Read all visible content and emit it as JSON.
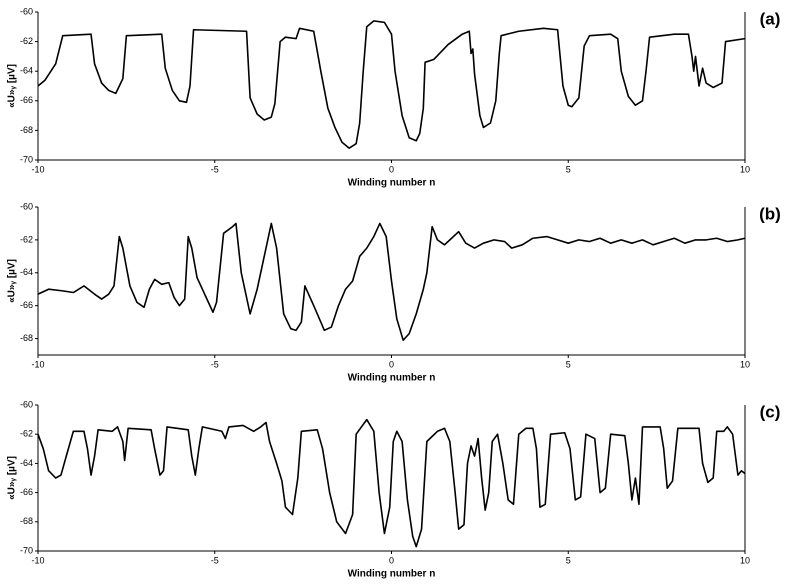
{
  "chart_data": [
    {
      "type": "line",
      "label": "(a)",
      "xlabel": "Winding number n",
      "ylabel": "«U»ᵧ [µV]",
      "color": "#000000",
      "xlim": [
        -10,
        10
      ],
      "xticks": [
        -10,
        -5,
        0,
        5,
        10
      ],
      "ylim": [
        -70,
        -60
      ],
      "yticks": [
        -70,
        -68,
        -66,
        -64,
        -62,
        -60
      ],
      "x": [
        -10,
        -9.8,
        -9.5,
        -9.3,
        -8.5,
        -8.4,
        -8.2,
        -8.0,
        -7.8,
        -7.6,
        -7.5,
        -6.5,
        -6.4,
        -6.2,
        -6.0,
        -5.8,
        -5.7,
        -5.6,
        -4.1,
        -4.0,
        -3.8,
        -3.6,
        -3.4,
        -3.3,
        -3.15,
        -3.0,
        -2.7,
        -2.6,
        -2.2,
        -2.0,
        -1.8,
        -1.6,
        -1.4,
        -1.2,
        -1.0,
        -0.9,
        -0.8,
        -0.7,
        -0.5,
        -0.2,
        0,
        0.1,
        0.3,
        0.5,
        0.7,
        0.8,
        0.9,
        0.95,
        1.2,
        1.6,
        2.0,
        2.2,
        2.25,
        2.3,
        2.35,
        2.5,
        2.6,
        2.8,
        2.95,
        3.05,
        3.1,
        3.6,
        4.3,
        4.7,
        4.75,
        4.85,
        5.0,
        5.1,
        5.3,
        5.45,
        5.6,
        6.2,
        6.4,
        6.5,
        6.7,
        6.9,
        7.1,
        7.2,
        7.3,
        8.0,
        8.4,
        8.5,
        8.55,
        8.6,
        8.7,
        8.8,
        8.9,
        9.1,
        9.35,
        9.45,
        10
      ],
      "values": [
        -65,
        -64.6,
        -63.5,
        -61.6,
        -61.5,
        -63.5,
        -64.8,
        -65.3,
        -65.5,
        -64.5,
        -61.6,
        -61.5,
        -63.8,
        -65.3,
        -66,
        -66.1,
        -65,
        -61.2,
        -61.3,
        -65.8,
        -66.9,
        -67.3,
        -67.1,
        -66.2,
        -62,
        -61.7,
        -61.8,
        -61.1,
        -61.3,
        -64,
        -66.5,
        -67.8,
        -68.8,
        -69.2,
        -68.9,
        -67.5,
        -64,
        -61,
        -60.6,
        -60.7,
        -61.5,
        -64,
        -67,
        -68.5,
        -68.7,
        -68.2,
        -66.5,
        -63.4,
        -63.2,
        -62.2,
        -61.5,
        -61.3,
        -62.8,
        -62.5,
        -64.2,
        -67,
        -67.8,
        -67.5,
        -66,
        -62.8,
        -61.6,
        -61.3,
        -61.1,
        -61.2,
        -62.5,
        -65,
        -66.3,
        -66.4,
        -65.8,
        -62.3,
        -61.6,
        -61.5,
        -61.8,
        -64,
        -65.7,
        -66.3,
        -66,
        -64,
        -61.7,
        -61.5,
        -61.5,
        -63,
        -64,
        -63,
        -65,
        -63.8,
        -64.8,
        -65.1,
        -64.8,
        -62,
        -61.8
      ]
    },
    {
      "type": "line",
      "label": "(b)",
      "xlabel": "Winding number n",
      "ylabel": "«U»ᵧ [µV]",
      "color": "#000000",
      "xlim": [
        -10,
        10
      ],
      "xticks": [
        -10,
        -5,
        0,
        5,
        10
      ],
      "ylim": [
        -69,
        -60
      ],
      "yticks": [
        -68,
        -66,
        -64,
        -62,
        -60
      ],
      "x": [
        -10,
        -9.7,
        -9.3,
        -9.0,
        -8.7,
        -8.4,
        -8.2,
        -8.0,
        -7.85,
        -7.7,
        -7.6,
        -7.4,
        -7.2,
        -7.0,
        -6.85,
        -6.7,
        -6.5,
        -6.3,
        -6.15,
        -6.0,
        -5.85,
        -5.75,
        -5.65,
        -5.5,
        -5.35,
        -5.2,
        -5.05,
        -4.95,
        -4.75,
        -4.5,
        -4.4,
        -4.25,
        -4.0,
        -3.8,
        -3.55,
        -3.4,
        -3.25,
        -3.05,
        -2.85,
        -2.7,
        -2.55,
        -2.45,
        -2.2,
        -2.0,
        -1.9,
        -1.7,
        -1.5,
        -1.3,
        -1.1,
        -0.9,
        -0.7,
        -0.5,
        -0.33,
        -0.15,
        0.0,
        0.15,
        0.33,
        0.5,
        0.7,
        0.9,
        1.0,
        1.15,
        1.3,
        1.5,
        1.7,
        1.9,
        2.1,
        2.35,
        2.6,
        2.9,
        3.2,
        3.4,
        3.7,
        4.0,
        4.4,
        4.7,
        5.0,
        5.3,
        5.6,
        5.9,
        6.2,
        6.5,
        6.8,
        7.1,
        7.4,
        7.7,
        8.0,
        8.3,
        8.6,
        8.9,
        9.2,
        9.5,
        9.8,
        10
      ],
      "values": [
        -65.3,
        -65,
        -65.1,
        -65.2,
        -64.8,
        -65.3,
        -65.6,
        -65.3,
        -64.8,
        -61.8,
        -62.5,
        -64.8,
        -65.8,
        -66.1,
        -65,
        -64.4,
        -64.7,
        -64.6,
        -65.5,
        -66,
        -65.6,
        -61.8,
        -62.5,
        -64.3,
        -65,
        -65.7,
        -66.4,
        -65.8,
        -61.6,
        -61.2,
        -61,
        -64,
        -66.5,
        -65,
        -62.5,
        -61,
        -62.5,
        -66.5,
        -67.4,
        -67.5,
        -67,
        -64.8,
        -66,
        -67,
        -67.5,
        -67.3,
        -66,
        -65,
        -64.5,
        -63,
        -62.5,
        -61.8,
        -61,
        -61.8,
        -64.5,
        -66.8,
        -68.1,
        -67.7,
        -66.5,
        -65,
        -64,
        -61.2,
        -62,
        -62.3,
        -61.9,
        -61.5,
        -62.2,
        -62.5,
        -62.2,
        -62,
        -62.1,
        -62.5,
        -62.3,
        -61.9,
        -61.8,
        -62,
        -62.2,
        -62,
        -62.1,
        -61.9,
        -62.2,
        -62,
        -62.2,
        -62,
        -62.3,
        -62.1,
        -61.9,
        -62.2,
        -62,
        -62,
        -61.9,
        -62.1,
        -62,
        -61.9
      ]
    },
    {
      "type": "line",
      "label": "(c)",
      "xlabel": "Winding number n",
      "ylabel": "«U»ᵧ [µV]",
      "color": "#000000",
      "xlim": [
        -10,
        10
      ],
      "xticks": [
        -10,
        -5,
        0,
        5,
        10
      ],
      "ylim": [
        -70,
        -60
      ],
      "yticks": [
        -70,
        -68,
        -66,
        -64,
        -62,
        -60
      ],
      "x": [
        -10,
        -9.85,
        -9.7,
        -9.5,
        -9.35,
        -9.2,
        -9.0,
        -8.7,
        -8.6,
        -8.5,
        -8.4,
        -8.3,
        -7.9,
        -7.75,
        -7.6,
        -7.55,
        -7.45,
        -6.8,
        -6.7,
        -6.55,
        -6.45,
        -6.35,
        -5.75,
        -5.65,
        -5.55,
        -5.45,
        -5.35,
        -4.8,
        -4.7,
        -4.6,
        -4.2,
        -3.9,
        -3.7,
        -3.55,
        -3.45,
        -3.25,
        -3.1,
        -3.0,
        -2.8,
        -2.65,
        -2.55,
        -2.1,
        -1.95,
        -1.75,
        -1.55,
        -1.3,
        -1.1,
        -1.0,
        -0.7,
        -0.5,
        -0.35,
        -0.2,
        -0.05,
        0.05,
        0.15,
        0.3,
        0.45,
        0.6,
        0.7,
        0.85,
        1.0,
        1.3,
        1.5,
        1.65,
        1.8,
        1.9,
        2.05,
        2.15,
        2.25,
        2.35,
        2.45,
        2.55,
        2.65,
        2.75,
        2.85,
        3.0,
        3.15,
        3.3,
        3.45,
        3.6,
        3.8,
        4.0,
        4.1,
        4.2,
        4.35,
        4.5,
        4.9,
        5.05,
        5.2,
        5.35,
        5.5,
        5.75,
        5.9,
        6.05,
        6.2,
        6.6,
        6.7,
        6.8,
        6.9,
        7.0,
        7.1,
        7.6,
        7.7,
        7.8,
        7.95,
        8.1,
        8.7,
        8.8,
        8.95,
        9.1,
        9.2,
        9.4,
        9.5,
        9.65,
        9.8,
        9.9,
        10
      ],
      "values": [
        -62,
        -63,
        -64.5,
        -65,
        -64.8,
        -63.5,
        -61.8,
        -61.8,
        -63,
        -64.8,
        -63.5,
        -61.7,
        -61.8,
        -61.5,
        -62.5,
        -63.8,
        -61.6,
        -61.7,
        -63,
        -64.8,
        -64.5,
        -61.5,
        -61.7,
        -63.5,
        -64.8,
        -63,
        -61.5,
        -61.8,
        -62.3,
        -61.5,
        -61.4,
        -61.8,
        -61.5,
        -61.2,
        -62.5,
        -64,
        -65.2,
        -67,
        -67.5,
        -65,
        -61.8,
        -61.7,
        -63,
        -66,
        -68,
        -68.8,
        -67.5,
        -62,
        -61,
        -61.8,
        -66,
        -68.8,
        -67,
        -62.5,
        -61.8,
        -62.5,
        -66.5,
        -69,
        -69.7,
        -68.5,
        -62.5,
        -61.8,
        -61.6,
        -62.5,
        -66,
        -68.5,
        -68.2,
        -64,
        -62.8,
        -63.5,
        -62.3,
        -65,
        -67.2,
        -66,
        -62.5,
        -62,
        -64,
        -66.5,
        -66.8,
        -62,
        -61.6,
        -61.6,
        -63,
        -67,
        -66.8,
        -62,
        -61.9,
        -63,
        -66.5,
        -66.3,
        -62,
        -62.3,
        -66,
        -65.7,
        -62,
        -62.1,
        -64,
        -66.5,
        -65,
        -66.8,
        -61.5,
        -61.5,
        -63,
        -65.7,
        -65.2,
        -61.6,
        -61.6,
        -64,
        -65.3,
        -65,
        -61.8,
        -61.8,
        -61.5,
        -62,
        -64.8,
        -64.5,
        -64.7
      ]
    }
  ]
}
